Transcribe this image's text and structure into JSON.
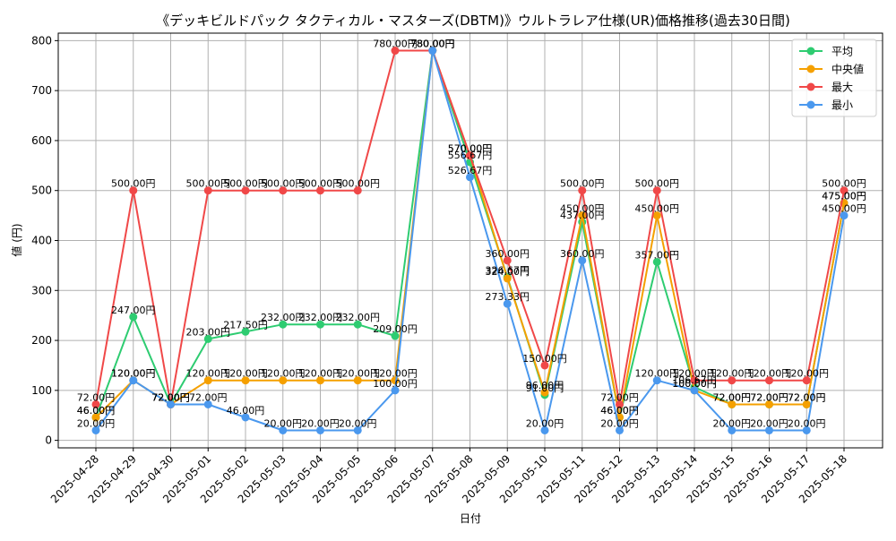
{
  "chart_data": {
    "type": "line",
    "title": "《デッキビルドパック タクティカル・マスターズ(DBTM)》ウルトラレア仕様(UR)価格推移(過去30日間)",
    "xlabel": "日付",
    "ylabel": "値 (円)",
    "ylim": [
      -15,
      815
    ],
    "yticks": [
      0,
      100,
      200,
      300,
      400,
      500,
      600,
      700,
      800
    ],
    "grid": true,
    "legend_position": "top-right",
    "x": [
      "2025-04-28",
      "2025-04-29",
      "2025-04-30",
      "2025-05-01",
      "2025-05-02",
      "2025-05-03",
      "2025-05-04",
      "2025-05-05",
      "2025-05-06",
      "2025-05-07",
      "2025-05-08",
      "2025-05-09",
      "2025-05-10",
      "2025-05-11",
      "2025-05-12",
      "2025-05-13",
      "2025-05-14",
      "2025-05-15",
      "2025-05-16",
      "2025-05-17",
      "2025-05-18"
    ],
    "series": [
      {
        "name": "平均",
        "color": "#2ecc71",
        "values": [
          46,
          247,
          72,
          203,
          217.5,
          232,
          232,
          232,
          209,
          780,
          556.67,
          326.67,
          91,
          437,
          46,
          357,
          106.67,
          72,
          72,
          72,
          475
        ],
        "labels": [
          "46.00円",
          "247.00円",
          "72.00円",
          "203.00円",
          "217.50円",
          "232.00円",
          "232.00円",
          "232.00円",
          "209.00円",
          "780.00円",
          "556.67円",
          "326.67円",
          "91.00円",
          "437.00円",
          "46.00円",
          "357.00円",
          "106.67円",
          "72.00円",
          "72.00円",
          "72.00円",
          "475.00円"
        ]
      },
      {
        "name": "中央値",
        "color": "#f5a000",
        "values": [
          46,
          120,
          72,
          120,
          120,
          120,
          120,
          120,
          120,
          780,
          570,
          324,
          96,
          450,
          46,
          450,
          100,
          72,
          72,
          72,
          475
        ],
        "labels": [
          "46.00円",
          "120.00円",
          "72.00円",
          "120.00円",
          "120.00円",
          "120.00円",
          "120.00円",
          "120.00円",
          "120.00円",
          "780.00円",
          "570.00円",
          "324.00円",
          "96.00円",
          "450.00円",
          "46.00円",
          "450.00円",
          "100.00円",
          "72.00円",
          "72.00円",
          "72.00円",
          "475.00円"
        ]
      },
      {
        "name": "最大",
        "color": "#f04848",
        "values": [
          72,
          500,
          72,
          500,
          500,
          500,
          500,
          500,
          780,
          780,
          570,
          360,
          150,
          500,
          72,
          500,
          120,
          120,
          120,
          120,
          500
        ],
        "labels": [
          "72.00円",
          "500.00円",
          "72.00円",
          "500.00円",
          "500.00円",
          "500.00円",
          "500.00円",
          "500.00円",
          "780.00円",
          "780.00円",
          "570.00円",
          "360.00円",
          "150.00円",
          "500.00円",
          "72.00円",
          "500.00円",
          "120.00円",
          "120.00円",
          "120.00円",
          "120.00円",
          "500.00円"
        ]
      },
      {
        "name": "最小",
        "color": "#4a98ee",
        "values": [
          20,
          120,
          72,
          72,
          46,
          20,
          20,
          20,
          100,
          780,
          526.67,
          273.33,
          20,
          360,
          20,
          120,
          100,
          20,
          20,
          20,
          450
        ],
        "labels": [
          "20.00円",
          "120.00円",
          "72.00円",
          "72.00円",
          "46.00円",
          "20.00円",
          "20.00円",
          "20.00円",
          "100.00円",
          "780.00円",
          "526.67円",
          "273.33円",
          "20.00円",
          "360.00円",
          "20.00円",
          "120.00円",
          "100.00円",
          "20.00円",
          "20.00円",
          "20.00円",
          "450.00円"
        ]
      }
    ]
  }
}
